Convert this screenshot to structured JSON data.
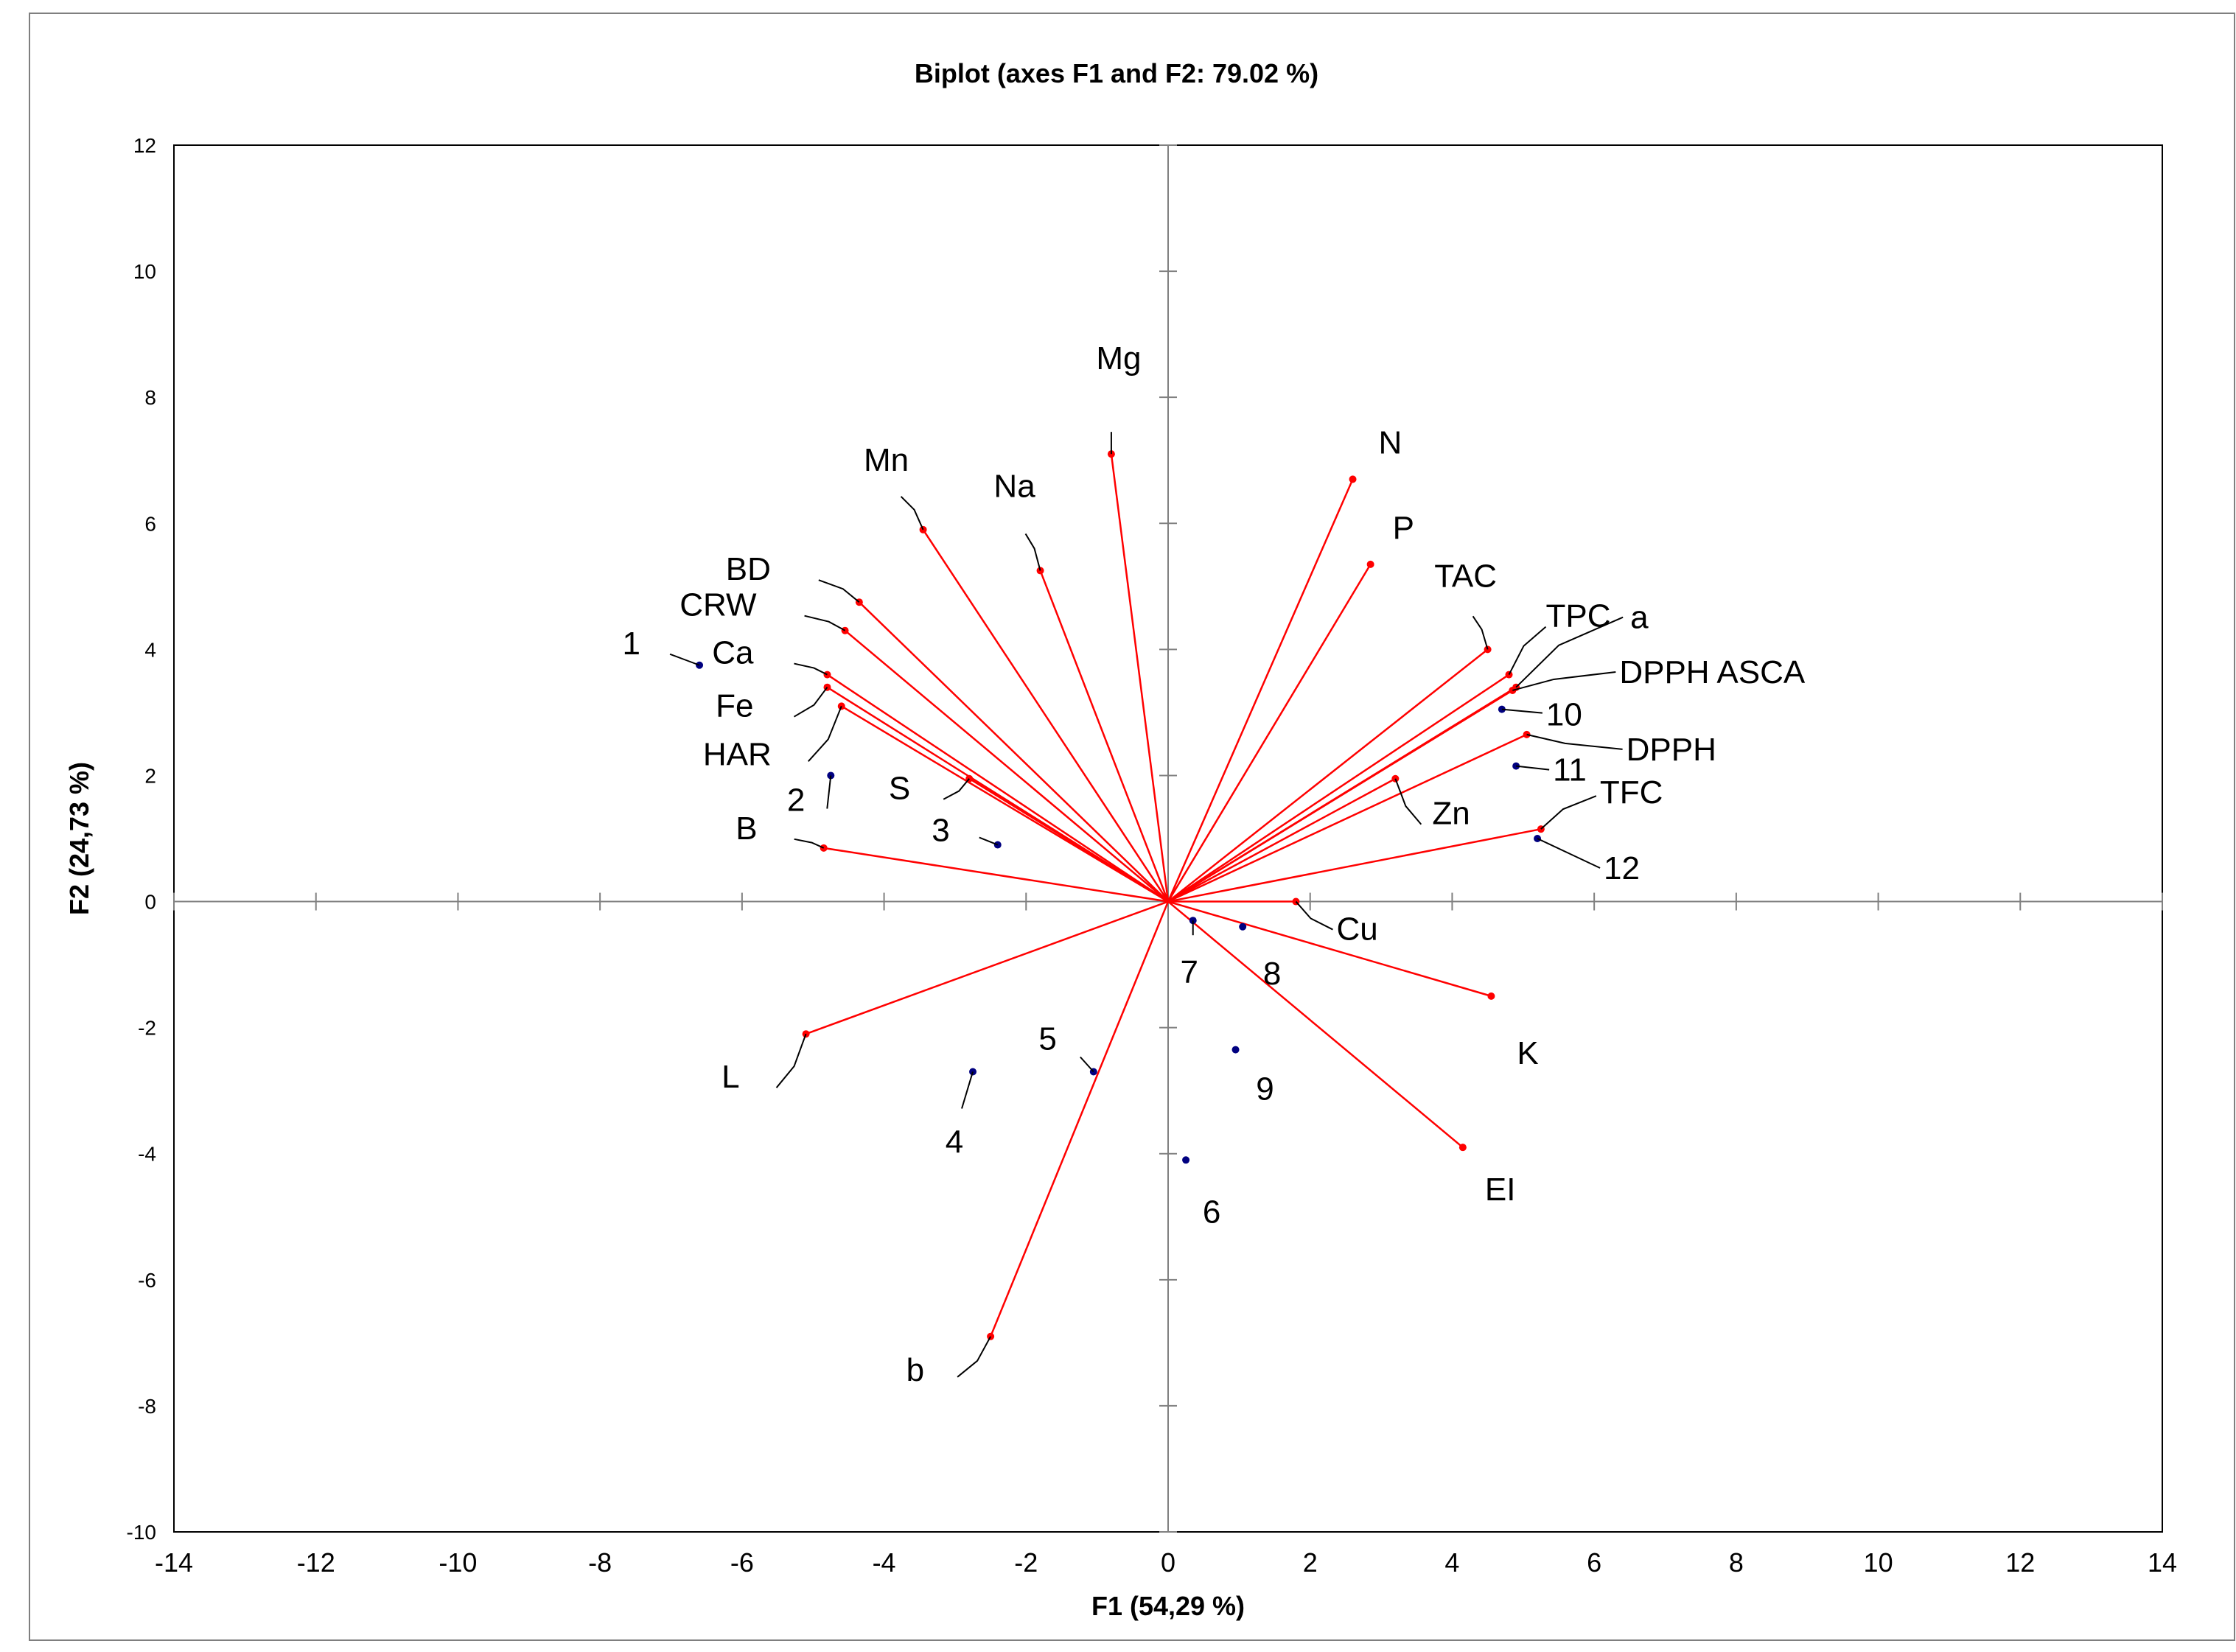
{
  "chart_data": {
    "type": "scatter",
    "subtype": "pca-biplot",
    "title": "Biplot (axes F1 and F2: 79.02 %)",
    "xlabel": "F1 (54,29 %)",
    "ylabel": "F2 (24,73 %)",
    "xlim": [
      -14,
      14
    ],
    "ylim": [
      -10,
      12
    ],
    "x_ticks": [
      -14,
      -12,
      -10,
      -8,
      -6,
      -4,
      -2,
      0,
      2,
      4,
      6,
      8,
      10,
      12,
      14
    ],
    "y_ticks": [
      -10,
      -8,
      -6,
      -4,
      -2,
      0,
      2,
      4,
      6,
      8,
      10,
      12
    ],
    "grid": false,
    "colors": {
      "variables": "#ff0000",
      "observations": "#000080",
      "axes": "#808080"
    },
    "variables": [
      {
        "name": "Mg",
        "x": -0.8,
        "y": 7.1
      },
      {
        "name": "Mn",
        "x": -3.45,
        "y": 5.9
      },
      {
        "name": "Na",
        "x": -1.8,
        "y": 5.25
      },
      {
        "name": "BD",
        "x": -4.35,
        "y": 4.75
      },
      {
        "name": "CRW",
        "x": -4.55,
        "y": 4.3
      },
      {
        "name": "Ca",
        "x": -4.8,
        "y": 3.6
      },
      {
        "name": "Fe",
        "x": -4.8,
        "y": 3.4
      },
      {
        "name": "HAR",
        "x": -4.6,
        "y": 3.1
      },
      {
        "name": "S",
        "x": -2.8,
        "y": 1.95
      },
      {
        "name": "B",
        "x": -4.85,
        "y": 0.85
      },
      {
        "name": "L",
        "x": -5.1,
        "y": -2.1
      },
      {
        "name": "b",
        "x": -2.5,
        "y": -6.9
      },
      {
        "name": "N",
        "x": 2.6,
        "y": 6.7
      },
      {
        "name": "P",
        "x": 2.85,
        "y": 5.35
      },
      {
        "name": "TAC",
        "x": 4.5,
        "y": 4.0
      },
      {
        "name": "TPC",
        "x": 4.8,
        "y": 3.6
      },
      {
        "name": "a",
        "x": 4.9,
        "y": 3.4
      },
      {
        "name": "DPPH ASCA",
        "x": 4.85,
        "y": 3.35
      },
      {
        "name": "DPPH",
        "x": 5.05,
        "y": 2.65
      },
      {
        "name": "Zn",
        "x": 3.2,
        "y": 1.95
      },
      {
        "name": "TFC",
        "x": 5.25,
        "y": 1.15
      },
      {
        "name": "Cu",
        "x": 1.8,
        "y": 0.0
      },
      {
        "name": "K",
        "x": 4.55,
        "y": -1.5
      },
      {
        "name": "EI",
        "x": 4.15,
        "y": -3.9
      }
    ],
    "observations": [
      {
        "name": "1",
        "x": -6.6,
        "y": 3.75
      },
      {
        "name": "2",
        "x": -4.75,
        "y": 2.0
      },
      {
        "name": "3",
        "x": -2.4,
        "y": 0.9
      },
      {
        "name": "4",
        "x": -2.75,
        "y": -2.7
      },
      {
        "name": "5",
        "x": -1.05,
        "y": -2.7
      },
      {
        "name": "6",
        "x": 0.25,
        "y": -4.1
      },
      {
        "name": "7",
        "x": 0.35,
        "y": -0.3
      },
      {
        "name": "8",
        "x": 1.05,
        "y": -0.4
      },
      {
        "name": "9",
        "x": 0.95,
        "y": -2.35
      },
      {
        "name": "10",
        "x": 4.7,
        "y": 3.05
      },
      {
        "name": "11",
        "x": 4.9,
        "y": 2.15
      },
      {
        "name": "12",
        "x": 5.2,
        "y": 1.0
      }
    ]
  }
}
